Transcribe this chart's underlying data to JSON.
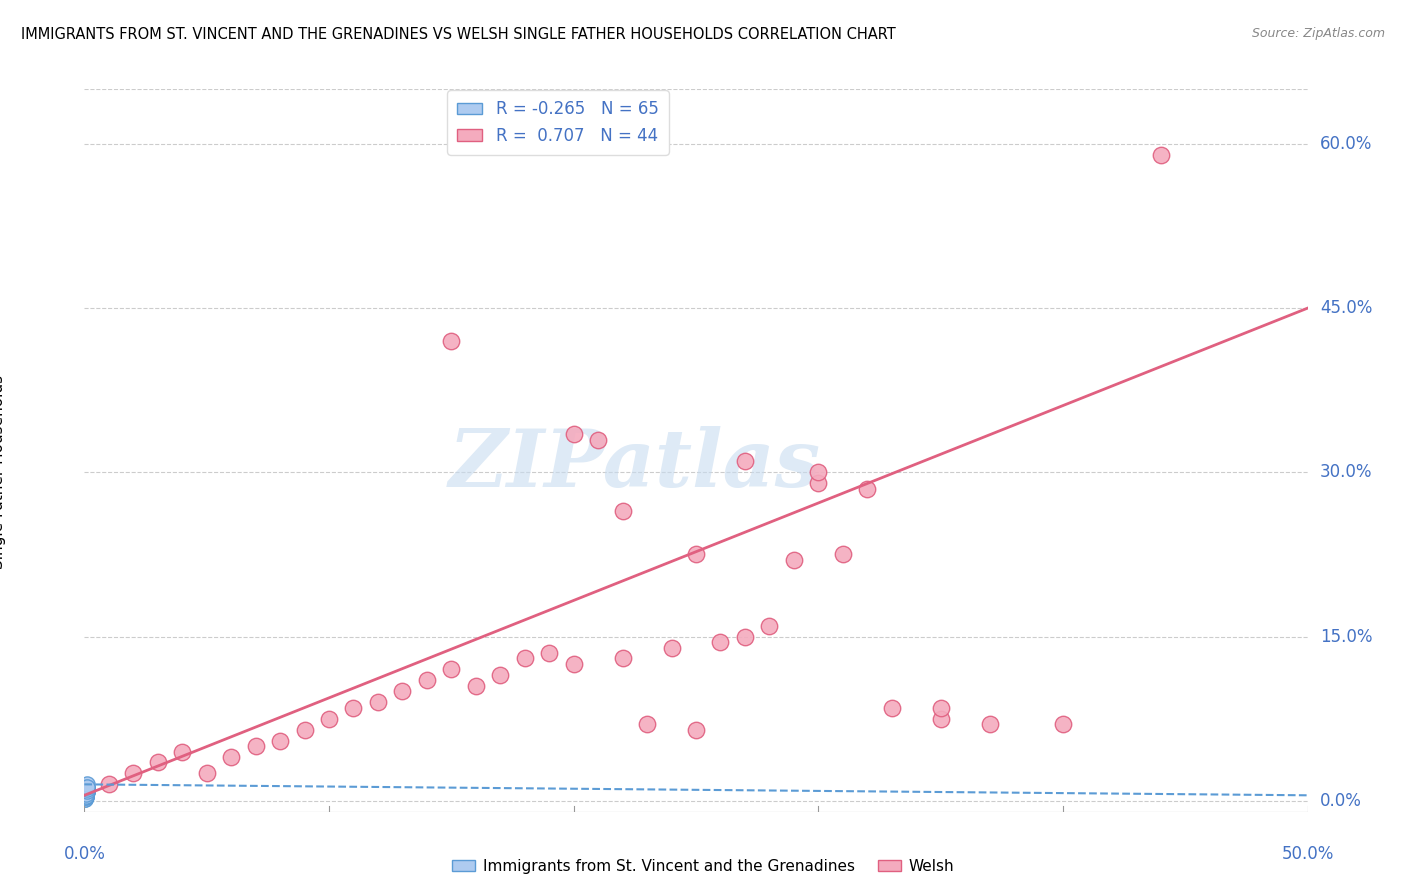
{
  "title": "IMMIGRANTS FROM ST. VINCENT AND THE GRENADINES VS WELSH SINGLE FATHER HOUSEHOLDS CORRELATION CHART",
  "source": "Source: ZipAtlas.com",
  "ylabel": "Single Father Households",
  "ytick_values": [
    0.0,
    15.0,
    30.0,
    45.0,
    60.0
  ],
  "xlim": [
    0.0,
    50.0
  ],
  "ylim": [
    -1.0,
    65.0
  ],
  "legend_r1": "-0.265",
  "legend_n1": "65",
  "legend_r2": "0.707",
  "legend_n2": "44",
  "color_blue_fill": "#AECBF0",
  "color_blue_edge": "#5B9BD5",
  "color_pink_fill": "#F4ABBE",
  "color_pink_edge": "#E06080",
  "color_pink_line": "#E06080",
  "color_blue_line": "#5B9BD5",
  "color_grid": "#CCCCCC",
  "blue_scatter_x": [
    0.02,
    0.03,
    0.04,
    0.05,
    0.06,
    0.07,
    0.08,
    0.09,
    0.1,
    0.02,
    0.03,
    0.04,
    0.05,
    0.06,
    0.07,
    0.08,
    0.09,
    0.1,
    0.02,
    0.03,
    0.04,
    0.05,
    0.06,
    0.07,
    0.08,
    0.09,
    0.1,
    0.02,
    0.03,
    0.04,
    0.05,
    0.06,
    0.07,
    0.08,
    0.09,
    0.1,
    0.02,
    0.03,
    0.04,
    0.05,
    0.06,
    0.07,
    0.08,
    0.09,
    0.1,
    0.02,
    0.03,
    0.04,
    0.05,
    0.06,
    0.07,
    0.08,
    0.09,
    0.1,
    0.02,
    0.03,
    0.04,
    0.05,
    0.06,
    0.07,
    0.08,
    0.09,
    0.1,
    0.1,
    0.12
  ],
  "blue_scatter_y": [
    0.3,
    0.5,
    0.8,
    1.0,
    1.2,
    0.4,
    0.6,
    0.9,
    1.1,
    0.2,
    0.4,
    0.7,
    0.9,
    1.1,
    0.3,
    0.5,
    0.8,
    1.0,
    0.4,
    0.6,
    0.9,
    1.1,
    1.3,
    0.5,
    0.7,
    1.0,
    1.2,
    0.3,
    0.5,
    0.8,
    1.0,
    1.2,
    0.4,
    0.6,
    0.9,
    1.1,
    0.2,
    0.4,
    0.7,
    0.9,
    1.1,
    0.3,
    0.5,
    0.8,
    1.0,
    0.4,
    0.6,
    0.9,
    1.1,
    1.3,
    0.5,
    0.7,
    1.0,
    1.2,
    0.3,
    0.5,
    0.8,
    1.0,
    1.2,
    0.4,
    0.6,
    0.9,
    1.1,
    1.5,
    1.3
  ],
  "pink_scatter_x": [
    1.0,
    2.0,
    3.0,
    4.0,
    5.0,
    6.0,
    7.0,
    8.0,
    9.0,
    10.0,
    11.0,
    12.0,
    13.0,
    14.0,
    15.0,
    16.0,
    17.0,
    18.0,
    19.0,
    20.0,
    21.0,
    22.0,
    23.0,
    24.0,
    25.0,
    26.0,
    27.0,
    28.0,
    29.0,
    30.0,
    31.0,
    32.0,
    35.0,
    37.0,
    40.0,
    44.0,
    15.0,
    20.0,
    22.0,
    25.0,
    27.0,
    30.0,
    33.0,
    35.0
  ],
  "pink_scatter_y": [
    1.5,
    2.5,
    3.5,
    4.5,
    2.5,
    4.0,
    5.0,
    5.5,
    6.5,
    7.5,
    8.5,
    9.0,
    10.0,
    11.0,
    12.0,
    10.5,
    11.5,
    13.0,
    13.5,
    12.5,
    33.0,
    13.0,
    7.0,
    14.0,
    6.5,
    14.5,
    15.0,
    16.0,
    22.0,
    29.0,
    22.5,
    28.5,
    7.5,
    7.0,
    7.0,
    59.0,
    42.0,
    33.5,
    26.5,
    22.5,
    31.0,
    30.0,
    8.5,
    8.5
  ],
  "pink_line_x": [
    0.0,
    50.0
  ],
  "pink_line_y": [
    0.5,
    45.0
  ],
  "blue_line_x": [
    0.0,
    50.0
  ],
  "blue_line_y": [
    1.5,
    0.5
  ],
  "watermark_text": "ZIPatlas",
  "watermark_color": "#C8DCF0"
}
